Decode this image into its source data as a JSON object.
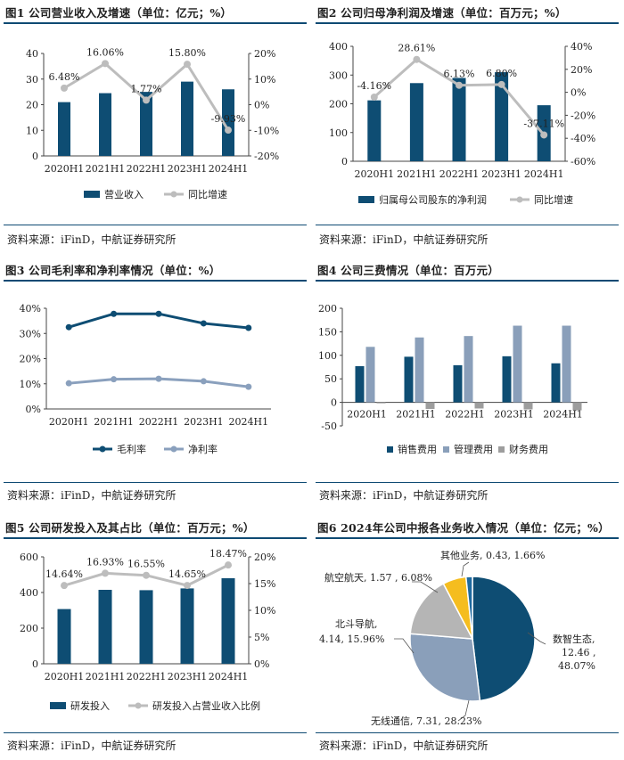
{
  "colors": {
    "bar": "#0e4d73",
    "line": "#bdbdbd",
    "bar2": "#8a9fba",
    "bar3": "#9d9d9d",
    "line_dark": "#0e4d73",
    "line_light": "#8aa0bd",
    "pie": [
      "#0e4d73",
      "#8a9fba",
      "#b5b5b5",
      "#f5bd1f",
      "#1e6aa0"
    ]
  },
  "source_text": "资料来源：iFinD，中航证券研究所",
  "charts": [
    {
      "id": "fig1",
      "title": "图1 公司营业收入及增速（单位：亿元；%）",
      "type": "bar+line",
      "categories": [
        "2020H1",
        "2021H1",
        "2022H1",
        "2023H1",
        "2024H1"
      ],
      "bar": {
        "name": "营业收入",
        "values": [
          21.0,
          24.5,
          25.0,
          29.0,
          26.0
        ]
      },
      "line": {
        "name": "同比增速",
        "values": [
          6.48,
          16.06,
          1.77,
          15.8,
          -9.93
        ],
        "labels": [
          "6.48%",
          "16.06%",
          "1.77%",
          "15.80%",
          "-9.93%"
        ]
      },
      "left_axis": {
        "min": 0,
        "max": 40,
        "step": 10,
        "ticks": [
          "0",
          "10",
          "20",
          "30",
          "40"
        ]
      },
      "right_axis": {
        "min": -20,
        "max": 20,
        "step": 10,
        "ticks": [
          "-20%",
          "-10%",
          "0%",
          "10%",
          "20%"
        ]
      }
    },
    {
      "id": "fig2",
      "title": "图2 公司归母净利润及增速（单位：百万元；%）",
      "type": "bar+line",
      "categories": [
        "2020H1",
        "2021H1",
        "2022H1",
        "2023H1",
        "2024H1"
      ],
      "bar": {
        "name": "归属母公司股东的净利润",
        "values": [
          212,
          272,
          290,
          310,
          195
        ]
      },
      "line": {
        "name": "同比增速",
        "values": [
          -4.16,
          28.61,
          6.13,
          6.8,
          -37.11
        ],
        "labels": [
          "-4.16%",
          "28.61%",
          "6.13%",
          "6.80%",
          "-37.11%"
        ]
      },
      "left_axis": {
        "min": 0,
        "max": 400,
        "step": 100,
        "ticks": [
          "0",
          "100",
          "200",
          "300",
          "400"
        ]
      },
      "right_axis": {
        "min": -60,
        "max": 40,
        "step": 20,
        "ticks": [
          "-60%",
          "-40%",
          "-20%",
          "0%",
          "20%",
          "40%"
        ]
      }
    },
    {
      "id": "fig3",
      "title": "图3 公司毛利率和净利率情况（单位：%）",
      "type": "line",
      "categories": [
        "2020H1",
        "2021H1",
        "2022H1",
        "2023H1",
        "2024H1"
      ],
      "series": [
        {
          "name": "毛利率",
          "values": [
            32.5,
            37.8,
            37.8,
            34.0,
            32.2
          ]
        },
        {
          "name": "净利率",
          "values": [
            10.2,
            11.8,
            12.0,
            11.0,
            8.8
          ]
        }
      ],
      "left_axis": {
        "min": 0,
        "max": 40,
        "step": 10,
        "ticks": [
          "0%",
          "10%",
          "20%",
          "30%",
          "40%"
        ]
      }
    },
    {
      "id": "fig4",
      "title": "图4 公司三费情况（单位：百万元）",
      "type": "bar",
      "categories": [
        "2020H1",
        "2021H1",
        "2022H1",
        "2023H1",
        "2024H1"
      ],
      "series": [
        {
          "name": "销售费用",
          "values": [
            77,
            97,
            79,
            98,
            83
          ]
        },
        {
          "name": "管理费用",
          "values": [
            118,
            138,
            141,
            163,
            163
          ]
        },
        {
          "name": "财务费用",
          "values": [
            -2,
            -14,
            -13,
            -15,
            -17
          ]
        }
      ],
      "left_axis": {
        "min": -50,
        "max": 200,
        "step": 50,
        "ticks": [
          "-50",
          "0",
          "50",
          "100",
          "150",
          "200"
        ]
      }
    },
    {
      "id": "fig5",
      "title": "图5 公司研发投入及其占比（单位：百万元；%）",
      "type": "bar+line",
      "categories": [
        "2020H1",
        "2021H1",
        "2022H1",
        "2023H1",
        "2024H1"
      ],
      "bar": {
        "name": "研发投入",
        "values": [
          307,
          415,
          413,
          423,
          480
        ]
      },
      "line": {
        "name": "研发投入占营业收入比例",
        "values": [
          14.64,
          16.93,
          16.55,
          14.65,
          18.47
        ],
        "labels": [
          "14.64%",
          "16.93%",
          "16.55%",
          "14.65%",
          "18.47%"
        ]
      },
      "left_axis": {
        "min": 0,
        "max": 600,
        "step": 200,
        "ticks": [
          "0",
          "200",
          "400",
          "600"
        ]
      },
      "right_axis": {
        "min": 0,
        "max": 20,
        "step": 5,
        "ticks": [
          "0%",
          "5%",
          "10%",
          "15%",
          "20%"
        ]
      }
    },
    {
      "id": "fig6",
      "title": "图6 2024年公司中报各业务收入情况（单位：亿元；%）",
      "type": "pie",
      "slices": [
        {
          "name": "数智生态",
          "value": 12.46,
          "pct": 48.07
        },
        {
          "name": "无线通信",
          "value": 7.31,
          "pct": 28.23
        },
        {
          "name": "北斗导航",
          "value": 4.14,
          "pct": 15.96
        },
        {
          "name": "航空航天",
          "value": 1.57,
          "pct": 6.08
        },
        {
          "name": "其他业务",
          "value": 0.43,
          "pct": 1.66
        }
      ],
      "slice_labels": [
        "数智生态,",
        "12.46 ,",
        "48.07%",
        "无线通信, 7.31, 28.23%",
        "北斗导航,",
        "4.14, 15.96%",
        "航空航天, 1.57 , 6.08%",
        "其他业务, 0.43, 1.66%"
      ]
    }
  ]
}
